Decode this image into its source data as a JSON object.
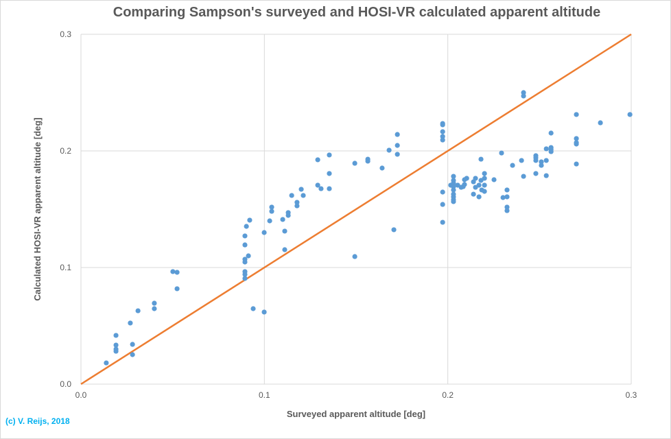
{
  "chart_data": {
    "type": "scatter",
    "title": "Comparing Sampson's surveyed and HOSI-VR calculated apparent altitude",
    "xlabel": "Surveyed apparent altitude [deg]",
    "ylabel": "Calculated HOSI-VR apparent altitude [deg]",
    "xlim": [
      0,
      0.3
    ],
    "ylim": [
      0,
      0.3
    ],
    "xticks": [
      "0.0",
      "0.1",
      "0.2",
      "0.3"
    ],
    "yticks": [
      "0.0",
      "0.1",
      "0.2",
      "0.3"
    ],
    "grid": true,
    "legend": "none",
    "series": [
      {
        "type": "scatter",
        "color": "#5B9BD5",
        "points": [
          [
            0.0138,
            0.0182
          ],
          [
            0.0191,
            0.0418
          ],
          [
            0.0191,
            0.0335
          ],
          [
            0.0191,
            0.03
          ],
          [
            0.0191,
            0.0282
          ],
          [
            0.0269,
            0.0524
          ],
          [
            0.0281,
            0.0341
          ],
          [
            0.0281,
            0.0253
          ],
          [
            0.0311,
            0.0629
          ],
          [
            0.04,
            0.0694
          ],
          [
            0.04,
            0.0647
          ],
          [
            0.0501,
            0.0965
          ],
          [
            0.0524,
            0.0959
          ],
          [
            0.0524,
            0.0818
          ],
          [
            0.0894,
            0.0906
          ],
          [
            0.0894,
            0.0941
          ],
          [
            0.0894,
            0.0965
          ],
          [
            0.0894,
            0.1047
          ],
          [
            0.0894,
            0.1071
          ],
          [
            0.0913,
            0.11
          ],
          [
            0.0894,
            0.1194
          ],
          [
            0.0894,
            0.1271
          ],
          [
            0.0902,
            0.1353
          ],
          [
            0.092,
            0.1406
          ],
          [
            0.0999,
            0.13
          ],
          [
            0.0939,
            0.0647
          ],
          [
            0.0999,
            0.0618
          ],
          [
            0.1029,
            0.14
          ],
          [
            0.104,
            0.1482
          ],
          [
            0.104,
            0.1518
          ],
          [
            0.11,
            0.1412
          ],
          [
            0.1111,
            0.1312
          ],
          [
            0.1111,
            0.1153
          ],
          [
            0.113,
            0.1447
          ],
          [
            0.113,
            0.1471
          ],
          [
            0.1149,
            0.1618
          ],
          [
            0.1178,
            0.1529
          ],
          [
            0.1178,
            0.1559
          ],
          [
            0.1201,
            0.1671
          ],
          [
            0.1212,
            0.1618
          ],
          [
            0.1291,
            0.1924
          ],
          [
            0.1291,
            0.1706
          ],
          [
            0.1309,
            0.1676
          ],
          [
            0.1354,
            0.1965
          ],
          [
            0.1354,
            0.1806
          ],
          [
            0.1354,
            0.1676
          ],
          [
            0.1493,
            0.1894
          ],
          [
            0.1493,
            0.1094
          ],
          [
            0.1564,
            0.1929
          ],
          [
            0.1564,
            0.1912
          ],
          [
            0.1642,
            0.1853
          ],
          [
            0.168,
            0.2006
          ],
          [
            0.1706,
            0.1324
          ],
          [
            0.1725,
            0.2141
          ],
          [
            0.1725,
            0.2047
          ],
          [
            0.1725,
            0.1971
          ],
          [
            0.1972,
            0.2235
          ],
          [
            0.1972,
            0.2224
          ],
          [
            0.1972,
            0.2165
          ],
          [
            0.1972,
            0.2124
          ],
          [
            0.1972,
            0.2094
          ],
          [
            0.1972,
            0.1647
          ],
          [
            0.1972,
            0.1541
          ],
          [
            0.1972,
            0.1388
          ],
          [
            0.2413,
            0.25
          ],
          [
            0.2413,
            0.2471
          ],
          [
            0.2016,
            0.1706
          ],
          [
            0.2031,
            0.1782
          ],
          [
            0.2031,
            0.1747
          ],
          [
            0.2031,
            0.1724
          ],
          [
            0.2031,
            0.1694
          ],
          [
            0.2031,
            0.1665
          ],
          [
            0.2031,
            0.1629
          ],
          [
            0.2031,
            0.1606
          ],
          [
            0.2031,
            0.1582
          ],
          [
            0.2031,
            0.1565
          ],
          [
            0.2054,
            0.1706
          ],
          [
            0.2073,
            0.1688
          ],
          [
            0.2084,
            0.1694
          ],
          [
            0.2091,
            0.1712
          ],
          [
            0.2091,
            0.1753
          ],
          [
            0.2103,
            0.1765
          ],
          [
            0.214,
            0.1735
          ],
          [
            0.2151,
            0.1765
          ],
          [
            0.2151,
            0.1688
          ],
          [
            0.214,
            0.1629
          ],
          [
            0.217,
            0.1706
          ],
          [
            0.217,
            0.1606
          ],
          [
            0.2181,
            0.1747
          ],
          [
            0.2185,
            0.1665
          ],
          [
            0.22,
            0.1806
          ],
          [
            0.22,
            0.1765
          ],
          [
            0.22,
            0.1706
          ],
          [
            0.22,
            0.1653
          ],
          [
            0.2181,
            0.1929
          ],
          [
            0.2252,
            0.1753
          ],
          [
            0.2293,
            0.1982
          ],
          [
            0.2301,
            0.16
          ],
          [
            0.2323,
            0.1665
          ],
          [
            0.2323,
            0.1606
          ],
          [
            0.2323,
            0.1518
          ],
          [
            0.2323,
            0.1488
          ],
          [
            0.2353,
            0.1876
          ],
          [
            0.2402,
            0.1918
          ],
          [
            0.2413,
            0.1782
          ],
          [
            0.248,
            0.1959
          ],
          [
            0.248,
            0.1941
          ],
          [
            0.248,
            0.1918
          ],
          [
            0.248,
            0.1806
          ],
          [
            0.251,
            0.1906
          ],
          [
            0.251,
            0.1876
          ],
          [
            0.2537,
            0.2018
          ],
          [
            0.2537,
            0.1918
          ],
          [
            0.2537,
            0.1788
          ],
          [
            0.2563,
            0.2153
          ],
          [
            0.2563,
            0.2029
          ],
          [
            0.2563,
            0.2012
          ],
          [
            0.2563,
            0.1994
          ],
          [
            0.2701,
            0.2312
          ],
          [
            0.2701,
            0.2106
          ],
          [
            0.2701,
            0.2071
          ],
          [
            0.2701,
            0.2059
          ],
          [
            0.2701,
            0.1888
          ],
          [
            0.2832,
            0.2241
          ],
          [
            0.2993,
            0.2312
          ]
        ]
      },
      {
        "type": "line",
        "color": "#ED7D31",
        "points": [
          [
            0,
            0
          ],
          [
            0.3,
            0.3
          ]
        ]
      }
    ]
  },
  "copyright": {
    "text": "(c) V. Reijs, 2018",
    "color": "#00B0F0"
  }
}
